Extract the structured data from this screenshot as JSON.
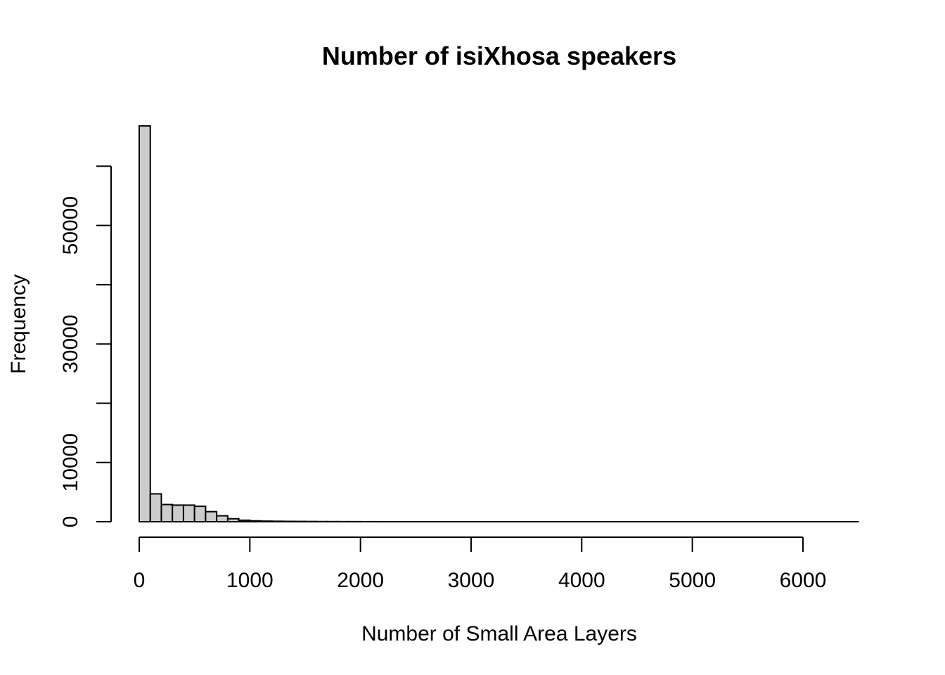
{
  "chart_data": {
    "type": "bar",
    "title": "Number of isiXhosa speakers",
    "xlabel": "Number of Small Area Layers",
    "ylabel": "Frequency",
    "bin_width": 100,
    "bin_start": 0,
    "xlim": [
      0,
      6500
    ],
    "ylim": [
      0,
      67000
    ],
    "x_ticks": [
      0,
      1000,
      2000,
      3000,
      4000,
      5000,
      6000
    ],
    "x_tick_labels": [
      "0",
      "1000",
      "2000",
      "3000",
      "4000",
      "5000",
      "6000"
    ],
    "y_ticks": [
      0,
      10000,
      20000,
      30000,
      40000,
      50000,
      60000
    ],
    "y_tick_labels": [
      "0",
      "10000",
      "",
      "30000",
      "",
      "50000",
      ""
    ],
    "values": [
      66800,
      4700,
      2900,
      2800,
      2800,
      2600,
      1700,
      1000,
      500,
      250,
      150,
      100,
      80,
      60,
      50,
      40,
      30,
      25,
      20,
      15,
      12,
      10,
      8,
      6,
      5,
      4,
      3,
      3,
      2,
      2,
      2,
      1,
      1,
      1,
      1,
      1,
      1,
      1,
      1,
      1,
      1,
      1,
      1,
      1,
      1,
      1,
      1,
      1,
      1,
      1,
      1,
      1,
      1,
      1,
      1,
      1,
      1,
      1,
      1,
      1,
      1,
      1,
      1,
      1,
      1
    ],
    "bar_fill": "#cccccc",
    "grid": false,
    "legend": "none"
  }
}
